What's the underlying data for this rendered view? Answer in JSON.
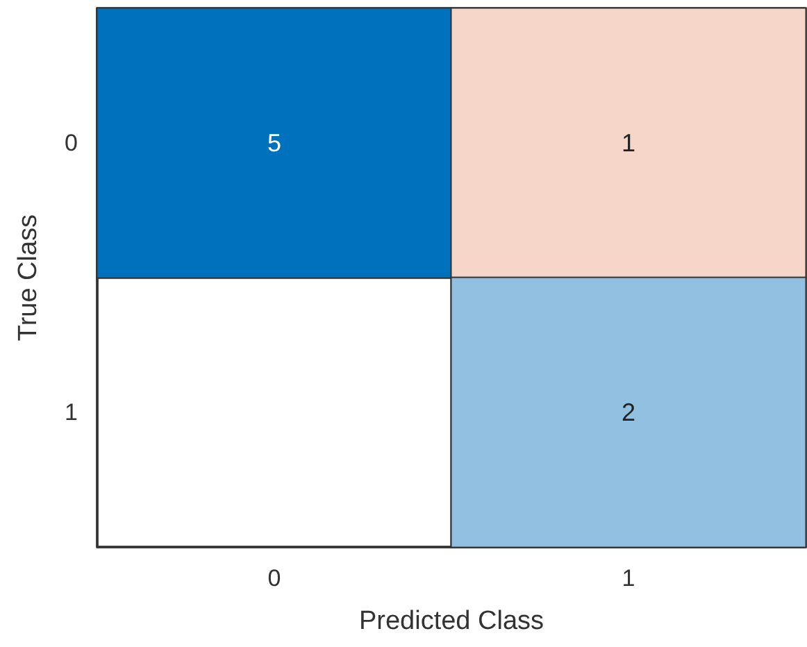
{
  "chart_data": {
    "type": "heatmap",
    "xlabel": "Predicted Class",
    "ylabel": "True Class",
    "categories": [
      "0",
      "1"
    ],
    "y_categories": [
      "0",
      "1"
    ],
    "cells": [
      [
        5,
        1
      ],
      [
        null,
        2
      ]
    ],
    "colors": [
      [
        "#0072bd",
        "#f5d6c9"
      ],
      [
        null,
        "#92c0e1"
      ]
    ],
    "data_labels": true
  }
}
